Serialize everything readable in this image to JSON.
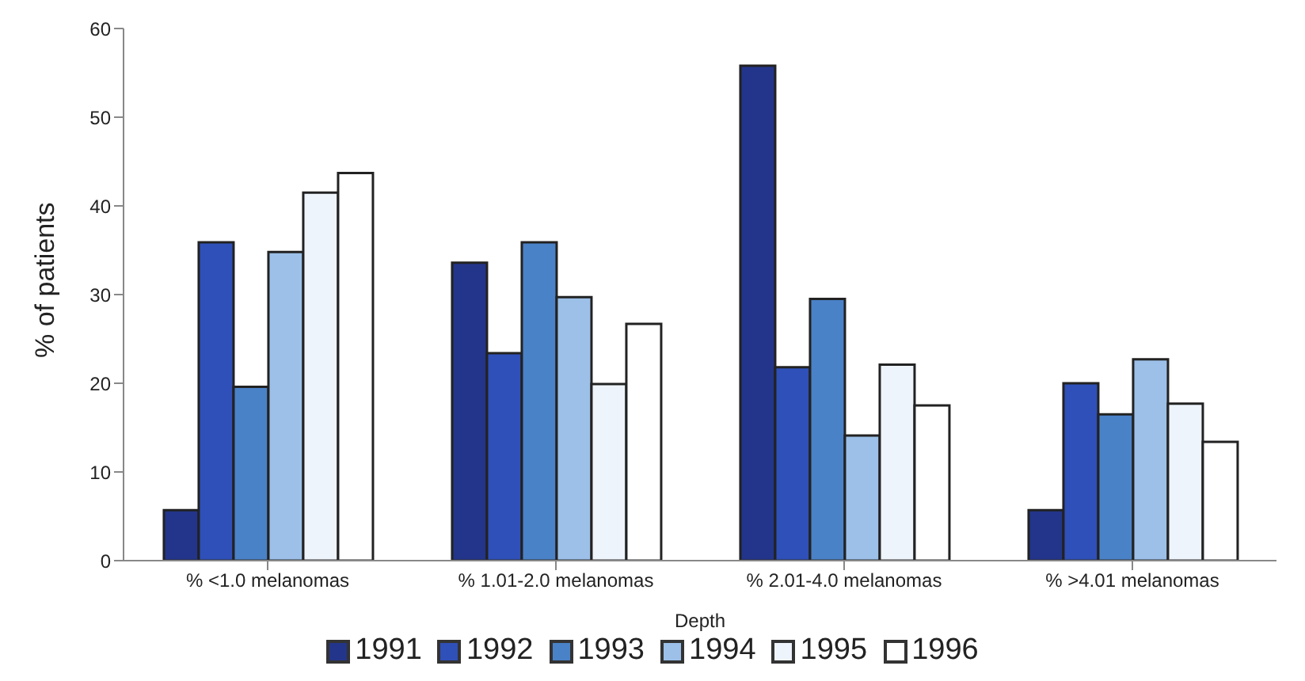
{
  "chart_data": {
    "type": "bar",
    "xlabel": "Depth",
    "ylabel": "% of patients",
    "categories": [
      "% <1.0 melanomas",
      "% 1.01-2.0 melanomas",
      "% 2.01-4.0 melanomas",
      "% >4.01 melanomas"
    ],
    "series": [
      {
        "name": "1991",
        "color": "#23358a",
        "values": [
          5.7,
          33.6,
          55.8,
          5.7
        ]
      },
      {
        "name": "1992",
        "color": "#2f50b8",
        "values": [
          35.9,
          23.4,
          21.8,
          20.0
        ]
      },
      {
        "name": "1993",
        "color": "#4a82c8",
        "values": [
          19.6,
          35.9,
          29.5,
          16.5
        ]
      },
      {
        "name": "1994",
        "color": "#9cc0e8",
        "values": [
          34.8,
          29.7,
          14.1,
          22.7
        ]
      },
      {
        "name": "1995",
        "color": "#eef4fc",
        "values": [
          41.5,
          19.9,
          22.1,
          17.7
        ]
      },
      {
        "name": "1996",
        "color": "#ffffff",
        "values": [
          43.7,
          26.7,
          17.5,
          13.4
        ]
      }
    ],
    "ylim": [
      0,
      60
    ],
    "yticks": [
      0,
      10,
      20,
      30,
      40,
      50,
      60
    ],
    "grid": false,
    "legend": "bottom"
  }
}
